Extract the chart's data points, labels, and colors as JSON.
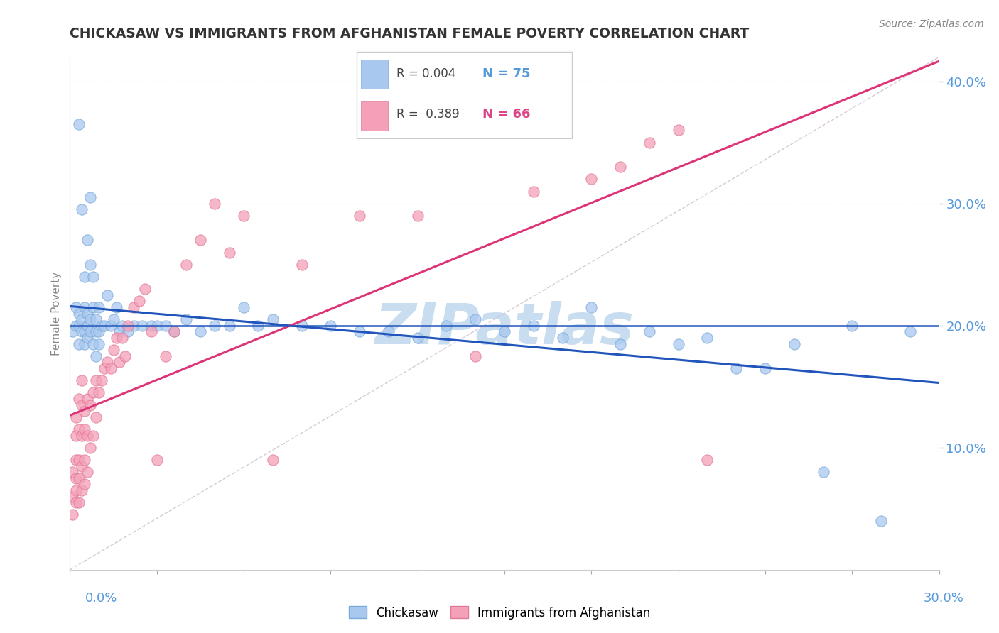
{
  "title": "CHICKASAW VS IMMIGRANTS FROM AFGHANISTAN FEMALE POVERTY CORRELATION CHART",
  "source": "Source: ZipAtlas.com",
  "ylabel": "Female Poverty",
  "x_min": 0.0,
  "x_max": 0.3,
  "y_min": 0.0,
  "y_max": 0.42,
  "chickasaw_R": 0.004,
  "chickasaw_N": 75,
  "afghanistan_R": 0.389,
  "afghanistan_N": 66,
  "chickasaw_color": "#a8c8f0",
  "chickasaw_edge_color": "#7aaad8",
  "afghanistan_color": "#f4a0b8",
  "afghanistan_edge_color": "#e07898",
  "chickasaw_line_color": "#2255bb",
  "afghanistan_line_color": "#dd3377",
  "diagonal_color": "#ccbbcc",
  "hline_y": 0.2,
  "hline_color": "#2255bb",
  "watermark": "ZIPatlas",
  "watermark_color": "#c8ddf0",
  "tick_color": "#5599dd",
  "grid_color": "#ddddee",
  "chickasaw_x": [
    0.001,
    0.002,
    0.002,
    0.003,
    0.003,
    0.003,
    0.004,
    0.004,
    0.005,
    0.005,
    0.005,
    0.006,
    0.006,
    0.006,
    0.007,
    0.007,
    0.007,
    0.008,
    0.008,
    0.009,
    0.009,
    0.01,
    0.01,
    0.011,
    0.012,
    0.013,
    0.014,
    0.015,
    0.016,
    0.017,
    0.018,
    0.02,
    0.022,
    0.025,
    0.028,
    0.03,
    0.033,
    0.036,
    0.04,
    0.045,
    0.05,
    0.055,
    0.06,
    0.065,
    0.07,
    0.08,
    0.09,
    0.1,
    0.11,
    0.12,
    0.13,
    0.14,
    0.15,
    0.16,
    0.17,
    0.18,
    0.19,
    0.2,
    0.21,
    0.22,
    0.23,
    0.24,
    0.25,
    0.26,
    0.27,
    0.28,
    0.29,
    0.003,
    0.004,
    0.005,
    0.006,
    0.007,
    0.008,
    0.009,
    0.01
  ],
  "chickasaw_y": [
    0.195,
    0.2,
    0.215,
    0.185,
    0.2,
    0.21,
    0.195,
    0.205,
    0.185,
    0.195,
    0.215,
    0.19,
    0.2,
    0.21,
    0.195,
    0.205,
    0.25,
    0.185,
    0.215,
    0.195,
    0.205,
    0.195,
    0.215,
    0.2,
    0.2,
    0.225,
    0.2,
    0.205,
    0.215,
    0.195,
    0.2,
    0.195,
    0.2,
    0.2,
    0.2,
    0.2,
    0.2,
    0.195,
    0.205,
    0.195,
    0.2,
    0.2,
    0.215,
    0.2,
    0.205,
    0.2,
    0.2,
    0.195,
    0.195,
    0.19,
    0.2,
    0.205,
    0.195,
    0.2,
    0.19,
    0.215,
    0.185,
    0.195,
    0.185,
    0.19,
    0.165,
    0.165,
    0.185,
    0.08,
    0.2,
    0.04,
    0.195,
    0.365,
    0.295,
    0.24,
    0.27,
    0.305,
    0.24,
    0.175,
    0.185
  ],
  "afghanistan_x": [
    0.001,
    0.001,
    0.001,
    0.002,
    0.002,
    0.002,
    0.002,
    0.002,
    0.002,
    0.003,
    0.003,
    0.003,
    0.003,
    0.003,
    0.004,
    0.004,
    0.004,
    0.004,
    0.004,
    0.005,
    0.005,
    0.005,
    0.005,
    0.006,
    0.006,
    0.006,
    0.007,
    0.007,
    0.008,
    0.008,
    0.009,
    0.009,
    0.01,
    0.011,
    0.012,
    0.013,
    0.014,
    0.015,
    0.016,
    0.017,
    0.018,
    0.019,
    0.02,
    0.022,
    0.024,
    0.026,
    0.028,
    0.03,
    0.033,
    0.036,
    0.04,
    0.045,
    0.05,
    0.055,
    0.06,
    0.07,
    0.08,
    0.1,
    0.12,
    0.14,
    0.16,
    0.18,
    0.19,
    0.2,
    0.21,
    0.22
  ],
  "afghanistan_y": [
    0.045,
    0.06,
    0.08,
    0.055,
    0.065,
    0.075,
    0.09,
    0.11,
    0.125,
    0.055,
    0.075,
    0.09,
    0.115,
    0.14,
    0.065,
    0.085,
    0.11,
    0.135,
    0.155,
    0.07,
    0.09,
    0.115,
    0.13,
    0.08,
    0.11,
    0.14,
    0.1,
    0.135,
    0.11,
    0.145,
    0.125,
    0.155,
    0.145,
    0.155,
    0.165,
    0.17,
    0.165,
    0.18,
    0.19,
    0.17,
    0.19,
    0.175,
    0.2,
    0.215,
    0.22,
    0.23,
    0.195,
    0.09,
    0.175,
    0.195,
    0.25,
    0.27,
    0.3,
    0.26,
    0.29,
    0.09,
    0.25,
    0.29,
    0.29,
    0.175,
    0.31,
    0.32,
    0.33,
    0.35,
    0.36,
    0.09
  ]
}
